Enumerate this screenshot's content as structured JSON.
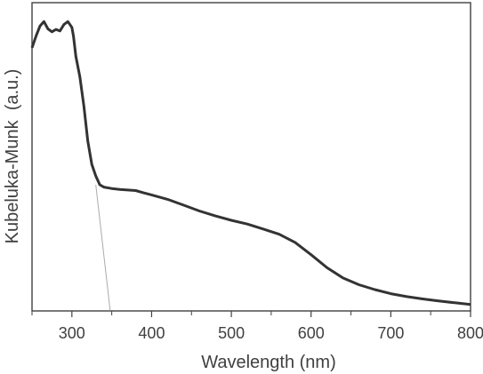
{
  "chart_data": {
    "type": "line",
    "title": "",
    "xlabel": "Wavelength (nm)",
    "ylabel": "Kubeluka-Munk  (a.u.)",
    "xlim": [
      250,
      800
    ],
    "ylim": [
      0,
      1
    ],
    "x_ticks": [
      300,
      400,
      500,
      600,
      700,
      800
    ],
    "x_tick_labels": [
      "300",
      "400",
      "500",
      "600",
      "700",
      "800"
    ],
    "y_ticks_shown": false,
    "grid": false,
    "legend": "none",
    "series": [
      {
        "color": "#333333",
        "x": [
          250,
          255,
          260,
          265,
          270,
          275,
          280,
          285,
          290,
          295,
          300,
          302,
          305,
          310,
          315,
          320,
          325,
          330,
          335,
          340,
          350,
          360,
          370,
          380,
          390,
          400,
          420,
          440,
          460,
          480,
          500,
          520,
          540,
          560,
          580,
          600,
          620,
          640,
          660,
          680,
          700,
          720,
          740,
          760,
          780,
          800
        ],
        "y": [
          0.9,
          0.94,
          0.975,
          0.99,
          0.965,
          0.955,
          0.963,
          0.958,
          0.98,
          0.99,
          0.97,
          0.94,
          0.87,
          0.8,
          0.7,
          0.58,
          0.5,
          0.46,
          0.43,
          0.422,
          0.417,
          0.414,
          0.412,
          0.41,
          0.402,
          0.395,
          0.38,
          0.36,
          0.34,
          0.323,
          0.308,
          0.295,
          0.278,
          0.26,
          0.232,
          0.19,
          0.145,
          0.11,
          0.087,
          0.07,
          0.056,
          0.046,
          0.038,
          0.031,
          0.025,
          0.019
        ]
      }
    ],
    "tangent_line": {
      "color": "#aaaaaa",
      "x": [
        330,
        348
      ],
      "y": [
        0.43,
        0.0
      ]
    }
  }
}
